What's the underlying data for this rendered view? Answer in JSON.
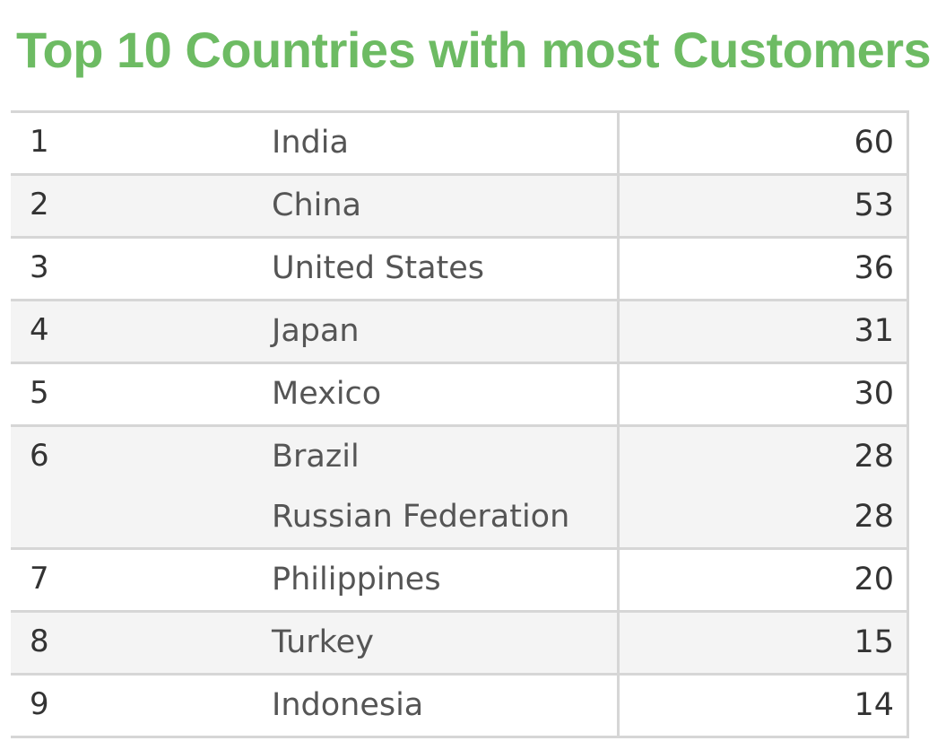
{
  "title": "Top 10 Countries with most Customers",
  "colors": {
    "title": "#6dbb63",
    "row_alt": "#f4f4f4",
    "grid": "#d6d6d6"
  },
  "chart_data": {
    "type": "table",
    "title": "Top 10 Countries with most Customers",
    "rows": [
      {
        "rank": "1",
        "country": "India",
        "customers": 60
      },
      {
        "rank": "2",
        "country": "China",
        "customers": 53
      },
      {
        "rank": "3",
        "country": "United States",
        "customers": 36
      },
      {
        "rank": "4",
        "country": "Japan",
        "customers": 31
      },
      {
        "rank": "5",
        "country": "Mexico",
        "customers": 30
      },
      {
        "rank": "6",
        "country": "Brazil",
        "customers": 28
      },
      {
        "rank": "6",
        "country": "Russian Federation",
        "customers": 28
      },
      {
        "rank": "7",
        "country": "Philippines",
        "customers": 20
      },
      {
        "rank": "8",
        "country": "Turkey",
        "customers": 15
      },
      {
        "rank": "9",
        "country": "Indonesia",
        "customers": 14
      }
    ]
  }
}
